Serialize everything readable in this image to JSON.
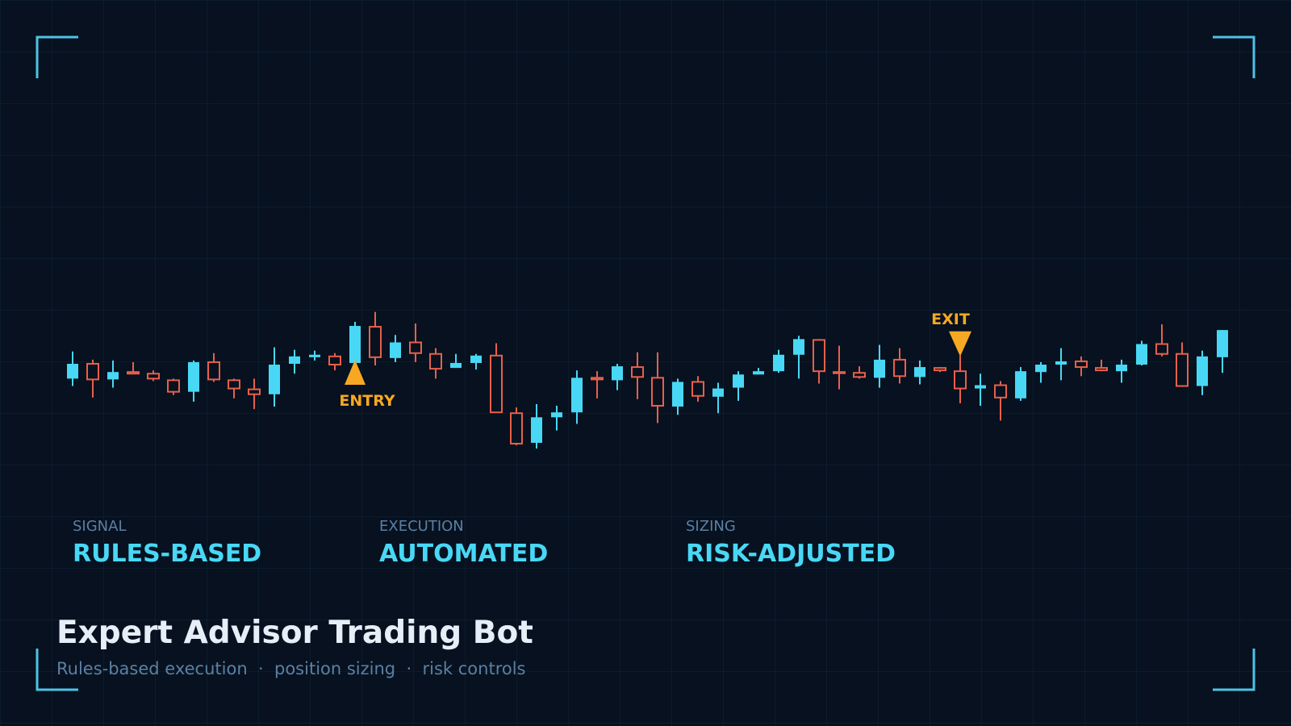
{
  "chart_data": {
    "type": "candlestick",
    "title": "Expert Advisor Trading Bot",
    "subtitle": "Rules-based execution  ·  position sizing  ·  risk controls",
    "up_color": "#48d8f5",
    "down_color": "#e8604a",
    "grid": true,
    "ylim": [
      0,
      600
    ],
    "open": [
      140,
      158,
      139,
      148,
      146,
      138,
      124,
      160,
      138,
      127,
      121,
      158,
      166,
      167,
      159,
      203,
      165,
      184,
      170,
      153,
      159,
      168,
      98,
      62,
      93,
      99,
      141,
      138,
      154,
      141,
      106,
      136,
      118,
      129,
      145,
      149,
      169,
      187,
      148,
      147,
      141,
      163,
      142,
      153,
      149,
      128,
      132,
      116,
      148,
      157,
      161,
      153,
      149,
      157,
      182,
      170,
      131,
      166
    ],
    "high": [
      173,
      163,
      162,
      160,
      150,
      140,
      162,
      171,
      140,
      140,
      178,
      175,
      174,
      171,
      209,
      221,
      193,
      207,
      177,
      170,
      170,
      183,
      105,
      109,
      107,
      150,
      149,
      158,
      172,
      172,
      140,
      143,
      135,
      149,
      153,
      175,
      192,
      188,
      180,
      155,
      181,
      177,
      162,
      154,
      168,
      146,
      137,
      154,
      160,
      177,
      167,
      163,
      163,
      186,
      206,
      184,
      174,
      199
    ],
    "low": [
      131,
      117,
      129,
      146,
      137,
      120,
      112,
      136,
      116,
      103,
      106,
      146,
      162,
      150,
      154,
      156,
      160,
      160,
      140,
      153,
      151,
      99,
      59,
      55,
      77,
      85,
      116,
      126,
      115,
      86,
      96,
      112,
      98,
      113,
      145,
      147,
      140,
      134,
      127,
      140,
      129,
      134,
      133,
      148,
      110,
      107,
      89,
      113,
      135,
      138,
      143,
      149,
      135,
      156,
      167,
      130,
      120,
      147
    ],
    "close": [
      158,
      139,
      148,
      146,
      140,
      124,
      160,
      139,
      128,
      121,
      157,
      167,
      169,
      157,
      204,
      166,
      184,
      171,
      152,
      159,
      168,
      99,
      61,
      93,
      99,
      141,
      139,
      155,
      142,
      107,
      136,
      119,
      128,
      145,
      149,
      169,
      188,
      149,
      147,
      142,
      163,
      143,
      154,
      150,
      128,
      132,
      117,
      149,
      157,
      161,
      154,
      150,
      157,
      182,
      170,
      131,
      167,
      199
    ],
    "annotations": [
      {
        "text": "ENTRY",
        "x": 14,
        "kind": "entry",
        "color": "#f7a823"
      },
      {
        "text": "EXIT",
        "x": 44,
        "kind": "exit",
        "color": "#f7a823"
      }
    ],
    "stats": [
      {
        "label": "SIGNAL",
        "value": "RULES-BASED"
      },
      {
        "label": "EXECUTION",
        "value": "AUTOMATED"
      },
      {
        "label": "SIZING",
        "value": "RISK-ADJUSTED"
      }
    ]
  }
}
